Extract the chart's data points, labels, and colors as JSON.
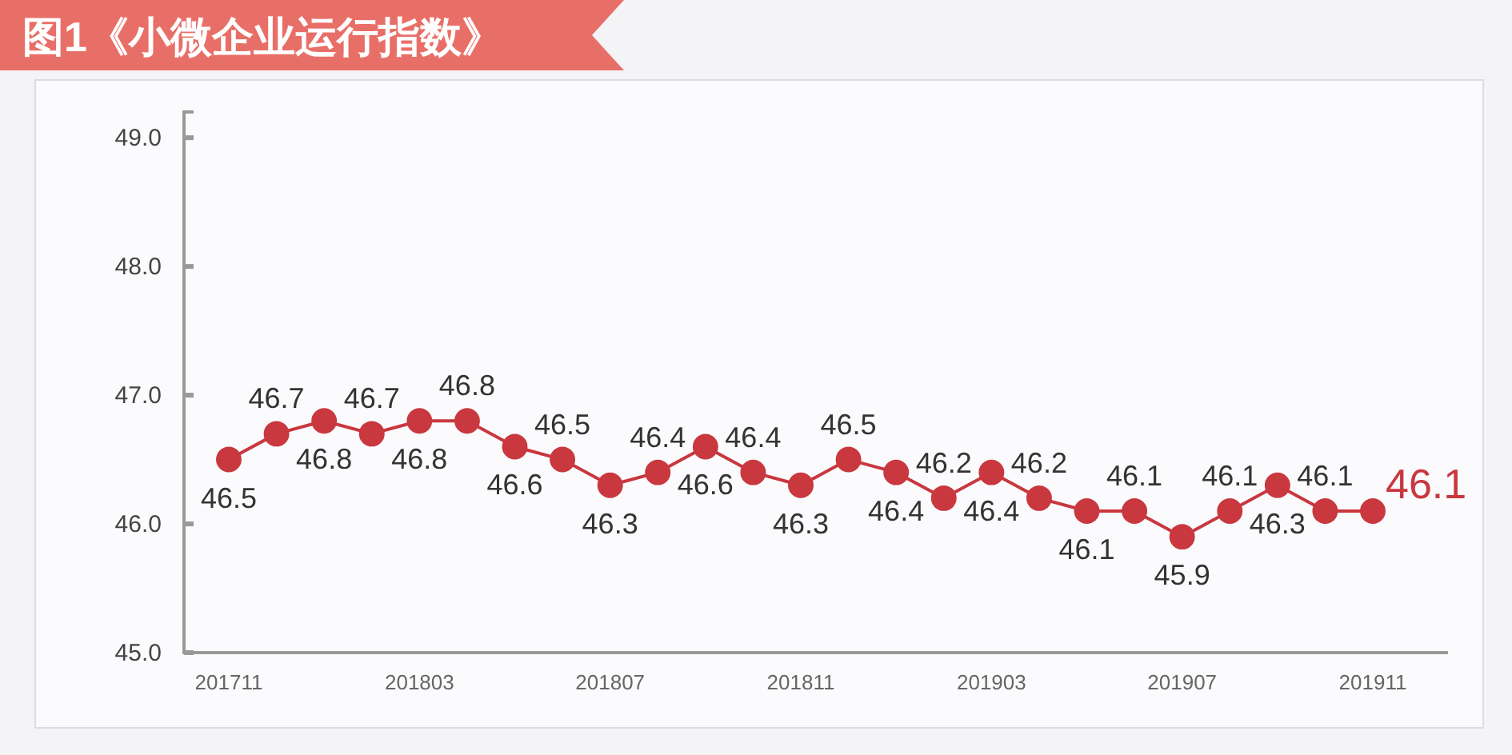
{
  "chart_data": {
    "type": "line",
    "title": "图1《小微企业运行指数》",
    "categories": [
      "201711",
      null,
      null,
      null,
      "201803",
      null,
      null,
      null,
      "201807",
      null,
      null,
      null,
      "201811",
      null,
      null,
      null,
      "201903",
      null,
      null,
      null,
      "201907",
      null,
      null,
      null,
      "201911"
    ],
    "series": [
      {
        "color": "#c9373f",
        "values": [
          46.5,
          46.7,
          46.8,
          46.7,
          46.8,
          46.8,
          46.6,
          46.5,
          46.3,
          46.4,
          46.6,
          46.4,
          46.3,
          46.5,
          46.4,
          46.2,
          46.4,
          46.2,
          46.1,
          46.1,
          45.9,
          46.1,
          46.3,
          46.1,
          46.1
        ]
      }
    ],
    "ylim": [
      45,
      49.2
    ],
    "yticks": [
      {
        "value": 45,
        "label": "45.0"
      },
      {
        "value": 46,
        "label": "46.0"
      },
      {
        "value": 47,
        "label": "47.0"
      },
      {
        "value": 48,
        "label": "48.0"
      },
      {
        "value": 49,
        "label": "49.0"
      }
    ],
    "data_labels": true,
    "marker": "circle",
    "line_style": "solid"
  }
}
